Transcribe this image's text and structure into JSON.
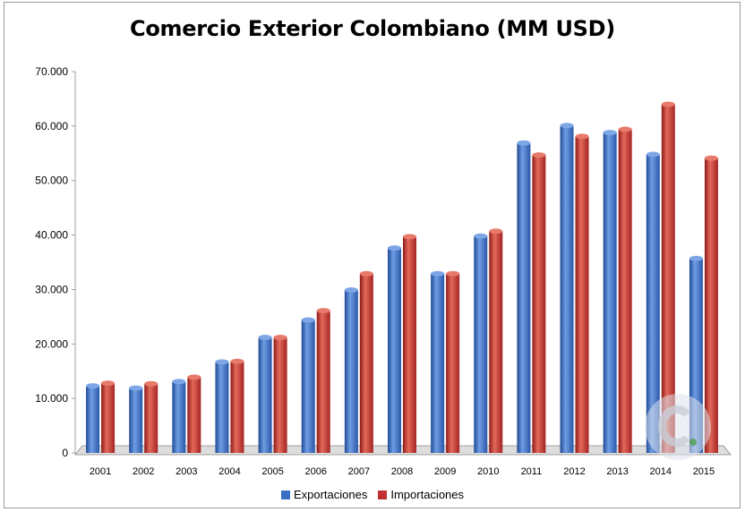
{
  "chart_data": {
    "type": "bar",
    "title": "Comercio Exterior Colombiano (MM USD)",
    "categories": [
      "2001",
      "2002",
      "2003",
      "2004",
      "2005",
      "2006",
      "2007",
      "2008",
      "2009",
      "2010",
      "2011",
      "2012",
      "2013",
      "2014",
      "2015"
    ],
    "series": [
      {
        "name": "Exportaciones",
        "color": "#3a6fc4",
        "values": [
          12300,
          11900,
          13100,
          16700,
          21200,
          24400,
          29900,
          37600,
          32900,
          39800,
          56900,
          60100,
          58800,
          54800,
          35700
        ]
      },
      {
        "name": "Importaciones",
        "color": "#c03030",
        "values": [
          12800,
          12700,
          13900,
          16800,
          21200,
          26100,
          32900,
          39700,
          32900,
          40700,
          54700,
          58100,
          59400,
          64000,
          54100
        ]
      }
    ],
    "ylim": [
      0,
      70000
    ],
    "yticks": [
      0,
      10000,
      20000,
      30000,
      40000,
      50000,
      60000,
      70000
    ],
    "ytick_labels": [
      "0",
      "10.000",
      "20.000",
      "30.000",
      "40.000",
      "50.000",
      "60.000",
      "70.000"
    ],
    "grid": false,
    "legend_position": "bottom"
  }
}
